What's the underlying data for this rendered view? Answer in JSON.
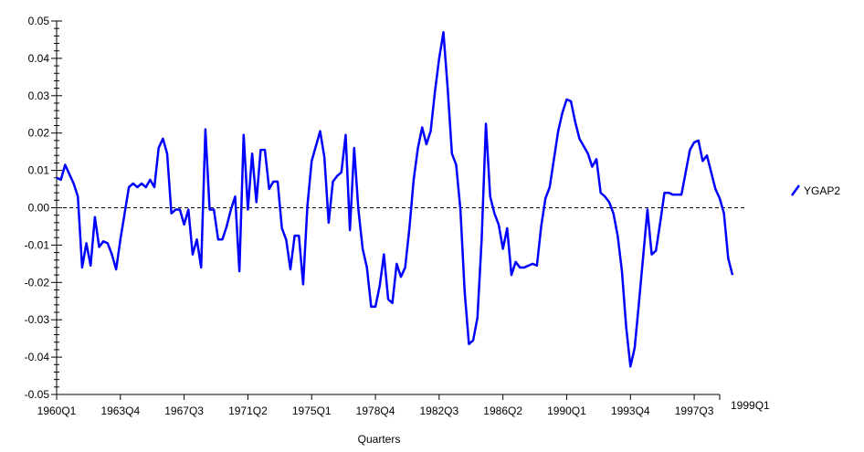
{
  "chart_data": {
    "type": "line",
    "xlabel": "Quarters",
    "x_tick_labels": [
      "1960Q1",
      "1963Q4",
      "1967Q3",
      "1971Q2",
      "1975Q1",
      "1978Q4",
      "1982Q3",
      "1986Q2",
      "1990Q1",
      "1993Q4",
      "1997Q3",
      "1999Q1"
    ],
    "y_ticks": [
      0.05,
      0.04,
      0.03,
      0.02,
      0.01,
      0.0,
      -0.01,
      -0.02,
      -0.03,
      -0.04,
      -0.05
    ],
    "y_tick_labels": [
      "0.05",
      "0.04",
      "0.03",
      "0.02",
      "0.01",
      "0.00",
      "-0.01",
      "-0.02",
      "-0.03",
      "-0.04",
      "-0.05"
    ],
    "ylim": [
      -0.05,
      0.05
    ],
    "x_range": [
      "1960Q1",
      "1999Q1"
    ],
    "reference_line": 0.0,
    "legend_position": "right",
    "line_color": "#0000ff",
    "series": [
      {
        "name": "YGAP2",
        "start": "1960Q1",
        "values": [
          0.008,
          0.0075,
          0.0115,
          0.009,
          0.0065,
          0.003,
          -0.016,
          -0.0095,
          -0.0155,
          -0.0025,
          -0.0105,
          -0.009,
          -0.0095,
          -0.0125,
          -0.0165,
          -0.0085,
          -0.0015,
          0.0055,
          0.0065,
          0.0055,
          0.0065,
          0.0055,
          0.0075,
          0.0055,
          0.016,
          0.0185,
          0.0145,
          -0.0015,
          -0.0005,
          -0.0005,
          -0.0045,
          -0.0005,
          -0.0125,
          -0.0085,
          -0.016,
          0.021,
          -0.0005,
          -0.0005,
          -0.0085,
          -0.0085,
          -0.005,
          -0.0005,
          0.003,
          -0.017,
          0.0195,
          -0.0005,
          0.0145,
          0.0015,
          0.0155,
          0.0155,
          0.005,
          0.007,
          0.007,
          -0.0055,
          -0.0085,
          -0.0165,
          -0.0075,
          -0.0075,
          -0.0205,
          0.0005,
          0.0125,
          0.0165,
          0.0205,
          0.0135,
          -0.004,
          0.007,
          0.0085,
          0.0095,
          0.0195,
          -0.006,
          0.016,
          -0.0005,
          -0.011,
          -0.016,
          -0.0265,
          -0.0265,
          -0.021,
          -0.0125,
          -0.0245,
          -0.0255,
          -0.015,
          -0.0185,
          -0.016,
          -0.0055,
          0.0075,
          0.016,
          0.0215,
          0.017,
          0.0205,
          0.031,
          0.04,
          0.047,
          0.032,
          0.0145,
          0.0115,
          -0.0005,
          -0.0225,
          -0.0365,
          -0.0355,
          -0.0295,
          -0.0085,
          0.0225,
          0.003,
          -0.0015,
          -0.0045,
          -0.011,
          -0.0055,
          -0.018,
          -0.0145,
          -0.016,
          -0.016,
          -0.0155,
          -0.015,
          -0.0155,
          -0.005,
          0.0025,
          0.0055,
          0.013,
          0.0205,
          0.0255,
          0.029,
          0.0285,
          0.023,
          0.0185,
          0.0165,
          0.0145,
          0.011,
          0.013,
          0.004,
          0.003,
          0.0015,
          -0.0015,
          -0.0075,
          -0.017,
          -0.032,
          -0.0425,
          -0.0375,
          -0.0255,
          -0.013,
          -0.0005,
          -0.0125,
          -0.0115,
          -0.004,
          0.004,
          0.004,
          0.0035,
          0.0035,
          0.0035,
          0.0095,
          0.0155,
          0.0175,
          0.018,
          0.0125,
          0.014,
          0.0095,
          0.005,
          0.0025,
          -0.0015,
          -0.0135,
          -0.018
        ]
      }
    ]
  }
}
